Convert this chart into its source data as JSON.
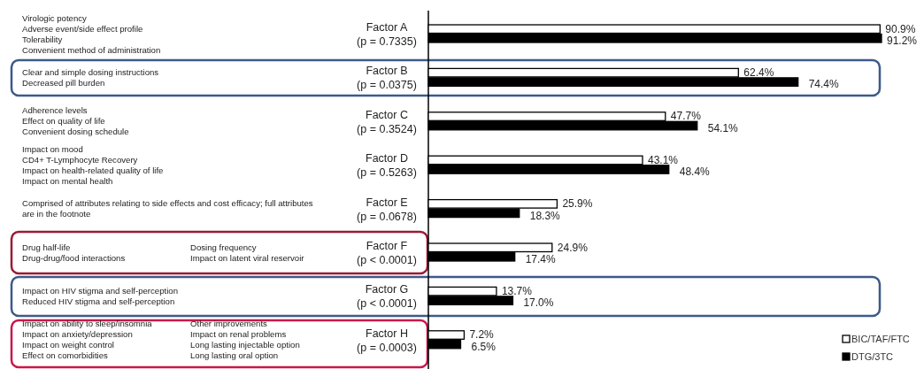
{
  "chart_data": {
    "type": "bar",
    "orientation": "horizontal",
    "categories": [
      "Factor A\n(p = 0.7335)",
      "Factor B\n(p = 0.0375)",
      "Factor C\n(p = 0.3524)",
      "Factor D\n(p = 0.5263)",
      "Factor E\n(p = 0.0678)",
      "Factor F\n(p < 0.0001)",
      "Factor G\n(p < 0.0001)",
      "Factor H\n(p = 0.0003)"
    ],
    "series": [
      {
        "name": "BIC/TAF/FTC",
        "color": "#ffffff",
        "values": [
          90.9,
          62.4,
          47.7,
          43.1,
          25.9,
          24.9,
          13.7,
          7.2
        ],
        "value_labels": [
          "90.9%",
          "62.4%",
          "47.7%",
          "43.1%",
          "25.9%",
          "24.9%",
          "13.7%",
          "7.2%"
        ]
      },
      {
        "name": "DTG/3TC",
        "color": "#000000",
        "values": [
          91.2,
          74.4,
          54.1,
          48.4,
          18.3,
          17.4,
          17.0,
          6.5
        ],
        "value_labels": [
          "91.2%",
          "74.4%",
          "54.1%",
          "48.4%",
          "18.3%",
          "17.4%",
          "17.0%",
          "6.5%"
        ]
      }
    ],
    "annotations": [
      "Virologic potency\nAdverse event/side effect profile\nTolerability\nConvenient method of administration",
      "Clear and simple dosing instructions\nDecreased pill burden",
      "Adherence levels\nEffect on quality of life\nConvenient dosing schedule",
      "Impact on mood\nCD4+ T-Lymphocyte Recovery\nImpact on health-related quality of life\nImpact on mental health",
      "Comprised of attributes relating to side effects and cost efficacy; full attributes\nare in the footnote",
      "Drug half-life\nDrug-drug/food interactions",
      "Dosing frequency\nImpact on latent viral reservoir",
      "Impact on HIV stigma and self-perception\nReduced HIV stigma and self-perception",
      "Impact on ability to sleep/insomnia\nImpact on anxiety/depression\nImpact on weight control\nEffect on comorbidities",
      "Other improvements\nImpact on renal problems\nLong lasting injectable option\nLong lasting oral option"
    ],
    "legend": "bottom right"
  }
}
